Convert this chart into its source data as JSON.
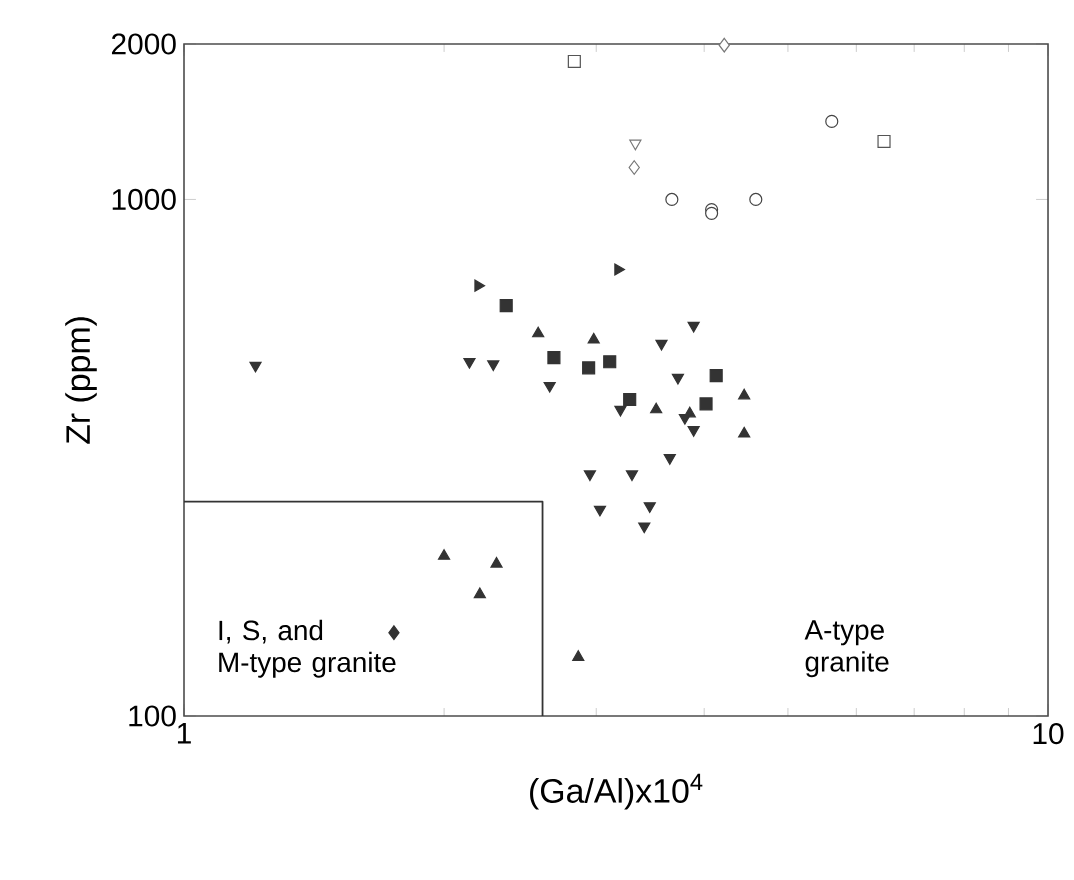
{
  "chart_data": {
    "type": "scatter",
    "xlabel": "(Ga/Al)x10$^{4}$",
    "ylabel": "Zr (ppm)",
    "log": "xy",
    "xlim": [
      1,
      10
    ],
    "ylim": [
      100,
      2000
    ],
    "xticks": [
      1,
      10
    ],
    "yticks": [
      100,
      1000,
      2000
    ],
    "grid": false,
    "annotations": [
      "I, S, and M-type granite",
      "A-type granite"
    ],
    "series": [
      {
        "type": "line",
        "marker": "none",
        "color": "#333333",
        "x": [
          1,
          2.6,
          2.6
        ],
        "values": [
          260,
          260,
          100
        ]
      },
      {
        "marker": "square-open",
        "color": "#555555",
        "x": [
          2.83,
          6.46
        ],
        "values": [
          1850,
          1295
        ]
      },
      {
        "marker": "diamond-open",
        "color": "#777777",
        "x": [
          4.22,
          3.32
        ],
        "values": [
          1990,
          1153
        ]
      },
      {
        "marker": "triangle-down-open",
        "color": "#777777",
        "x": [
          3.33
        ],
        "values": [
          1284
        ]
      },
      {
        "marker": "circle-open",
        "color": "#444444",
        "x": [
          5.62,
          3.67,
          4.08,
          4.08,
          4.59
        ],
        "values": [
          1416,
          1000,
          956,
          940,
          1000
        ]
      },
      {
        "marker": "triangle-right",
        "color": "#333333",
        "x": [
          3.18,
          2.19
        ],
        "values": [
          732,
          681
        ]
      },
      {
        "marker": "square",
        "color": "#333333",
        "x": [
          2.36,
          2.68,
          2.94,
          3.11,
          3.28,
          4.13,
          4.02
        ],
        "values": [
          623,
          494,
          472,
          485,
          410,
          456,
          402
        ]
      },
      {
        "marker": "triangle",
        "color": "#333333",
        "x": [
          2.57,
          2.98,
          3.52,
          4.45,
          4.45,
          3.85,
          2.0,
          2.3,
          2.2,
          2.86
        ],
        "values": [
          550,
          535,
          392,
          417,
          352,
          385,
          204,
          197,
          172,
          130
        ]
      },
      {
        "marker": "triangle-down",
        "color": "#333333",
        "x": [
          1.21,
          2.14,
          2.28,
          2.65,
          3.2,
          2.95,
          3.3,
          3.03,
          3.46,
          3.41,
          3.89,
          3.57,
          3.73,
          3.89,
          3.8,
          3.65
        ],
        "values": [
          477,
          485,
          480,
          436,
          392,
          294,
          294,
          251,
          255,
          233,
          570,
          526,
          452,
          358,
          378,
          316
        ]
      },
      {
        "marker": "diamond",
        "color": "#333333",
        "x": [
          1.75
        ],
        "values": [
          145
        ]
      }
    ]
  }
}
